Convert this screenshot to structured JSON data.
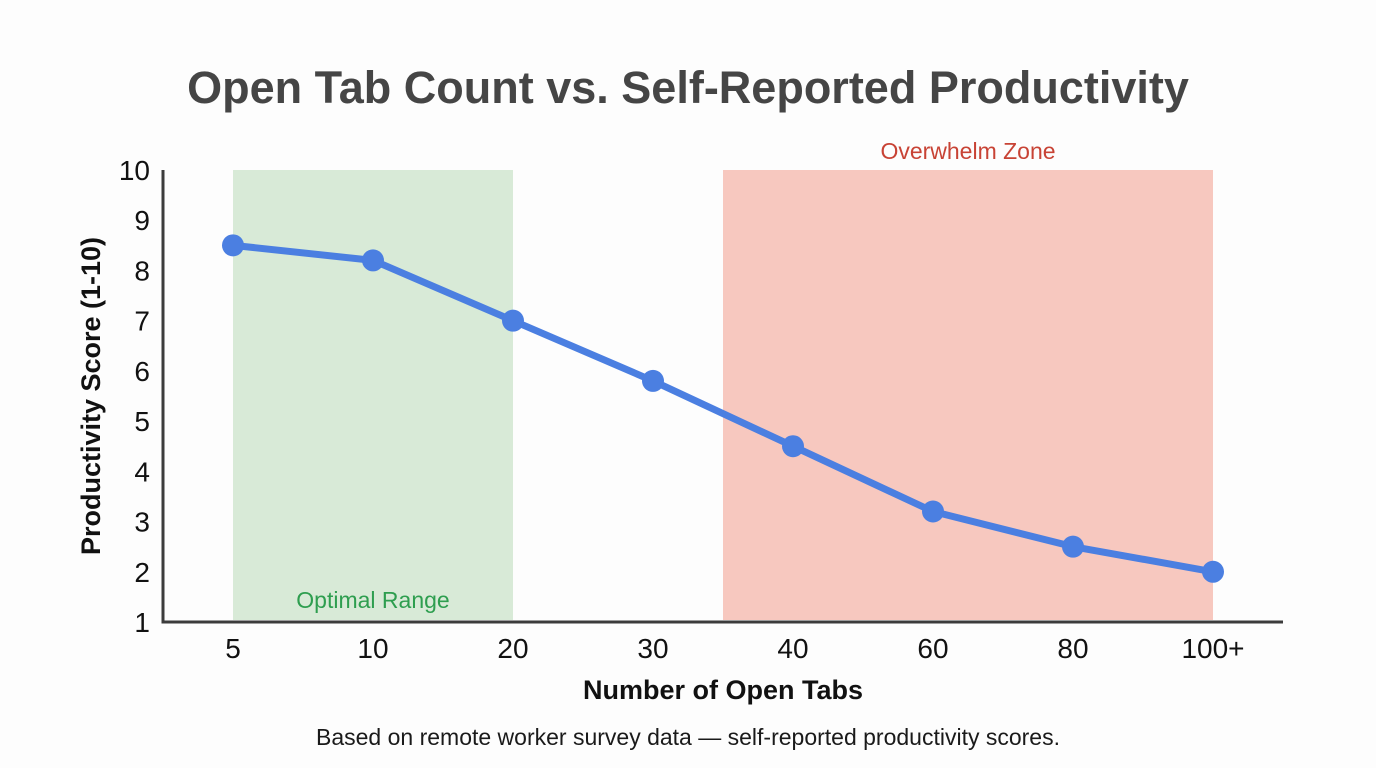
{
  "title": "Open Tab Count vs. Self-Reported Productivity",
  "caption": "Based on remote worker survey data — self-reported productivity scores.",
  "chart_data": {
    "type": "line",
    "categories": [
      "5",
      "10",
      "20",
      "30",
      "40",
      "60",
      "80",
      "100+"
    ],
    "values": [
      8.5,
      8.2,
      7.0,
      5.8,
      4.5,
      3.2,
      2.5,
      2.0
    ],
    "title": "Open Tab Count vs. Self-Reported Productivity",
    "xlabel": "Number of Open Tabs",
    "ylabel": "Productivity Score (1-10)",
    "ylim": [
      1,
      10
    ],
    "yticks": [
      1,
      2,
      3,
      4,
      5,
      6,
      7,
      8,
      9,
      10
    ],
    "grid": false,
    "legend": "none",
    "colors": {
      "line": "#4b7fe1",
      "point": "#4b7fe1",
      "axis": "#3c3c3c",
      "title_text": "#454545",
      "tick_text": "#111111"
    },
    "zones": [
      {
        "label": "Optimal Range",
        "from_index": 0,
        "to_index": 2,
        "fill": "#d8ead7",
        "label_color": "#2e9e4f",
        "label_position": "bottom-inside"
      },
      {
        "label": "Overwhelm Zone",
        "from_index": 3.5,
        "to_index": 7,
        "fill": "#f7c8bf",
        "label_color": "#c84335",
        "label_position": "top-outside"
      }
    ]
  }
}
